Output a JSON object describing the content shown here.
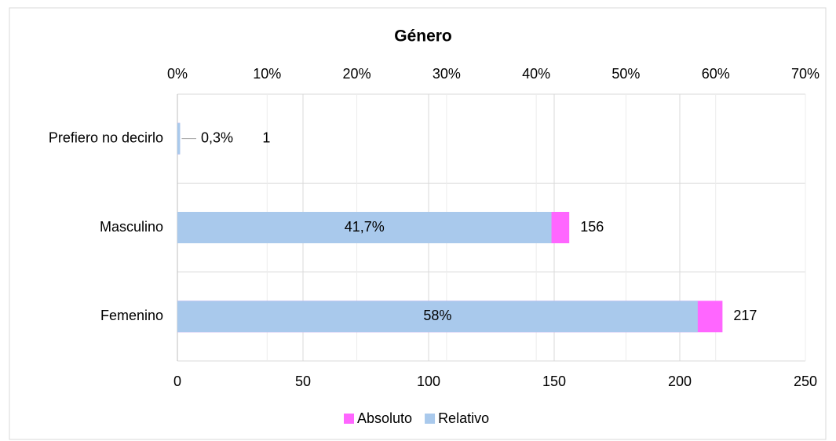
{
  "chart_data": {
    "type": "bar",
    "orientation": "horizontal",
    "title": "Género",
    "categories": [
      "Prefiero no decirlo",
      "Masculino",
      "Femenino"
    ],
    "series": [
      {
        "name": "Absoluto",
        "color": "#ff66ff",
        "values": [
          1,
          156,
          217
        ]
      },
      {
        "name": "Relativo",
        "color": "#a9c9ec",
        "axis": "x2",
        "values": [
          0.3,
          41.7,
          58
        ],
        "value_labels": [
          "0,3%",
          "41,7%",
          "58%"
        ]
      }
    ],
    "xlim": [
      0,
      250
    ],
    "xticks": [
      0,
      50,
      100,
      150,
      200,
      250
    ],
    "x2lim": [
      0,
      70
    ],
    "x2ticks": [
      {
        "value": 0,
        "label": "0%"
      },
      {
        "value": 10,
        "label": "10%"
      },
      {
        "value": 20,
        "label": "20%"
      },
      {
        "value": 30,
        "label": "30%"
      },
      {
        "value": 40,
        "label": "40%"
      },
      {
        "value": 50,
        "label": "50%"
      },
      {
        "value": 60,
        "label": "60%"
      },
      {
        "value": 70,
        "label": "70%"
      }
    ],
    "grid": true,
    "legend": "bottom"
  }
}
